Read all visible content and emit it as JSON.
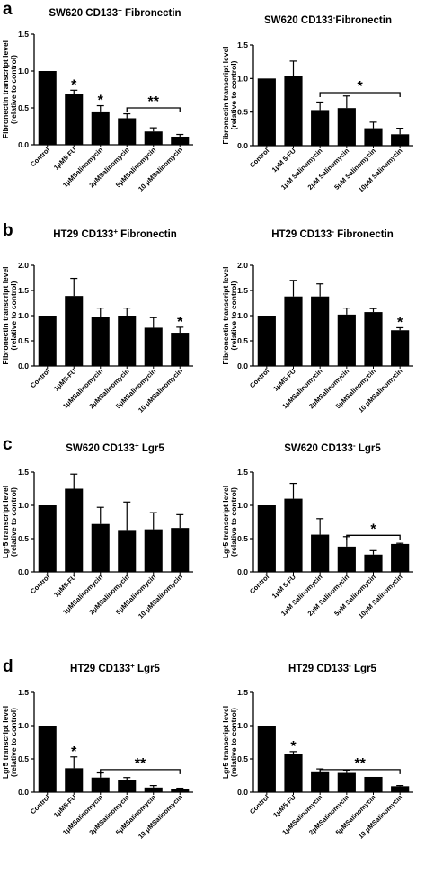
{
  "panels": [
    {
      "label": "a"
    },
    {
      "label": "b"
    },
    {
      "label": "c"
    },
    {
      "label": "d"
    }
  ],
  "chart_data": [
    {
      "type": "bar",
      "title_parts": [
        "SW620 CD133",
        "+",
        " Fibronectin"
      ],
      "ylabel_lines": [
        "Fibronectin transcript level",
        "(relative to control)"
      ],
      "ylim": [
        0,
        1.5
      ],
      "yticks": [
        "0.0",
        "0.5",
        "1.0",
        "1.5"
      ],
      "categories": [
        "Control",
        "1μM5-FU",
        "1μMSalinomycin",
        "2μMSalinomycin",
        "5μMSalinomycin",
        "10 μMSalinomycin"
      ],
      "values": [
        1.0,
        0.69,
        0.44,
        0.36,
        0.18,
        0.11
      ],
      "errors": [
        0.0,
        0.05,
        0.09,
        0.06,
        0.05,
        0.03
      ],
      "bar_annotations": [
        {
          "index": 1,
          "text": "*"
        },
        {
          "index": 2,
          "text": "*"
        }
      ],
      "brackets": [
        {
          "from": 3,
          "to": 5,
          "y": 0.5,
          "text": "**"
        }
      ]
    },
    {
      "type": "bar",
      "title_parts": [
        "SW620 CD133",
        "-",
        "Fibronectin"
      ],
      "ylabel_lines": [
        "Fibronectin transcript level",
        "(relative to control)"
      ],
      "ylim": [
        0,
        1.5
      ],
      "yticks": [
        "0.0",
        "0.5",
        "1.0",
        "1.5"
      ],
      "categories": [
        "Control",
        "1μM 5-FU",
        "1μM Salinomycin",
        "2μM Salinomycin",
        "5μM Salinomycin",
        "10μM Salinomycin"
      ],
      "values": [
        1.0,
        1.04,
        0.53,
        0.56,
        0.26,
        0.17
      ],
      "errors": [
        0.0,
        0.22,
        0.12,
        0.18,
        0.09,
        0.09
      ],
      "bar_annotations": [],
      "brackets": [
        {
          "from": 2,
          "to": 5,
          "y": 0.79,
          "text": "*"
        }
      ]
    },
    {
      "type": "bar",
      "title_parts": [
        "HT29 CD133",
        "+",
        " Fibronectin"
      ],
      "ylabel_lines": [
        "Fibronectin transcript level",
        "(relative to control)"
      ],
      "ylim": [
        0,
        2.0
      ],
      "yticks": [
        "0.0",
        "0.5",
        "1.0",
        "1.5",
        "2.0"
      ],
      "categories": [
        "Control",
        "1μM5-FU",
        "1μMSalinomycin",
        "2μMSalinomycin",
        "5μMSalinomycin",
        "10 μMSalinomycin"
      ],
      "values": [
        1.0,
        1.39,
        0.98,
        1.0,
        0.76,
        0.66
      ],
      "errors": [
        0.0,
        0.35,
        0.17,
        0.15,
        0.2,
        0.11
      ],
      "bar_annotations": [
        {
          "index": 5,
          "text": "*"
        }
      ],
      "brackets": []
    },
    {
      "type": "bar",
      "title_parts": [
        "HT29 CD133",
        "-",
        " Fibronectin"
      ],
      "ylabel_lines": [
        "Fibronectin transcript level",
        "(relative to control)"
      ],
      "ylim": [
        0,
        2.0
      ],
      "yticks": [
        "0.0",
        "0.5",
        "1.0",
        "1.5",
        "2.0"
      ],
      "categories": [
        "Control",
        "1μM5-FU",
        "1μMSalinomycin",
        "2μMSalinomycin",
        "5μMSalinomycin",
        "10 μMSalinomycin"
      ],
      "values": [
        1.0,
        1.38,
        1.38,
        1.02,
        1.07,
        0.71
      ],
      "errors": [
        0.0,
        0.32,
        0.25,
        0.13,
        0.07,
        0.05
      ],
      "bar_annotations": [
        {
          "index": 5,
          "text": "*"
        }
      ],
      "brackets": []
    },
    {
      "type": "bar",
      "title_parts": [
        "SW620 CD133",
        "+",
        " Lgr5"
      ],
      "ylabel_lines": [
        "Lgr5 transcript level",
        "(relative to control)"
      ],
      "ylim": [
        0,
        1.5
      ],
      "yticks": [
        "0.0",
        "0.5",
        "1.0",
        "1.5"
      ],
      "categories": [
        "Control",
        "1μM5-FU",
        "1μMSalinomycin",
        "2μMSalinomycin",
        "5μMSalinomycin",
        "10 μMSalinomycin"
      ],
      "values": [
        1.0,
        1.25,
        0.72,
        0.63,
        0.64,
        0.66
      ],
      "errors": [
        0.0,
        0.22,
        0.25,
        0.42,
        0.25,
        0.2
      ],
      "bar_annotations": [],
      "brackets": []
    },
    {
      "type": "bar",
      "title_parts": [
        "SW620 CD133",
        "-",
        " Lgr5"
      ],
      "ylabel_lines": [
        "Lgr5 transcript level",
        "(relative to control)"
      ],
      "ylim": [
        0,
        1.5
      ],
      "yticks": [
        "0.0",
        "0.5",
        "1.0",
        "1.5"
      ],
      "categories": [
        "Control",
        "1μM 5-FU",
        "1μM Salinomycin",
        "2μM Salinomycin",
        "5μM Salinomycin",
        "10μM Salinomycin"
      ],
      "values": [
        1.0,
        1.1,
        0.56,
        0.38,
        0.26,
        0.42
      ],
      "errors": [
        0.0,
        0.23,
        0.24,
        0.15,
        0.06,
        0.01
      ],
      "bar_annotations": [],
      "brackets": [
        {
          "from": 3,
          "to": 5,
          "y": 0.55,
          "text": "*"
        }
      ]
    },
    {
      "type": "bar",
      "title_parts": [
        "HT29 CD133",
        "+",
        " Lgr5"
      ],
      "ylabel_lines": [
        "Lgr5 transcript level",
        "(relative to control)"
      ],
      "ylim": [
        0,
        1.5
      ],
      "yticks": [
        "0.0",
        "0.5",
        "1.0",
        "1.5"
      ],
      "categories": [
        "Control",
        "1μM5-FU",
        "1μMSalinomycin",
        "2μMSalinomycin",
        "5μMSalinomycin",
        "10 μMSalinomycin"
      ],
      "values": [
        1.0,
        0.36,
        0.22,
        0.18,
        0.07,
        0.05
      ],
      "errors": [
        0.0,
        0.17,
        0.07,
        0.04,
        0.03,
        0.01
      ],
      "bar_annotations": [
        {
          "index": 1,
          "text": "*"
        }
      ],
      "brackets": [
        {
          "from": 2,
          "to": 5,
          "y": 0.34,
          "text": "**"
        }
      ]
    },
    {
      "type": "bar",
      "title_parts": [
        "HT29 CD133",
        "-",
        " Lgr5"
      ],
      "ylabel_lines": [
        "Lgr5 transcript level",
        "(relative to control)"
      ],
      "ylim": [
        0,
        1.5
      ],
      "yticks": [
        "0.0",
        "0.5",
        "1.0",
        "1.5"
      ],
      "categories": [
        "Control",
        "1μM5-FU",
        "1μMSalinomycin",
        "2μMSalinomycin",
        "5μMSalinomycin",
        "10 μMSalinomycin"
      ],
      "values": [
        1.0,
        0.58,
        0.3,
        0.29,
        0.23,
        0.09
      ],
      "errors": [
        0.0,
        0.03,
        0.05,
        0.04,
        0.0,
        0.01
      ],
      "bar_annotations": [
        {
          "index": 1,
          "text": "*"
        }
      ],
      "brackets": [
        {
          "from": 2,
          "to": 5,
          "y": 0.34,
          "text": "**"
        }
      ]
    }
  ]
}
